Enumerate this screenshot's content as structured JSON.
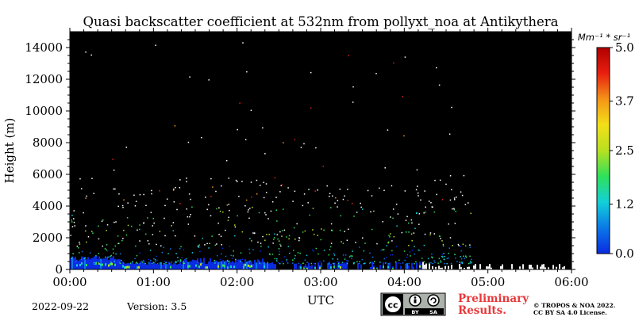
{
  "chart_data": {
    "type": "heatmap",
    "title": "Quasi backscatter coefficient at 532nm from pollyxt_noa at Antikythera",
    "xlabel": "UTC",
    "ylabel": "Height (m)",
    "x_ticks": [
      "00:00",
      "01:00",
      "02:00",
      "03:00",
      "04:00",
      "05:00",
      "06:00"
    ],
    "y_ticks": [
      "0",
      "2000",
      "4000",
      "6000",
      "8000",
      "10000",
      "12000",
      "14000"
    ],
    "xlim_hours": [
      0,
      6
    ],
    "ylim": [
      0,
      15000
    ],
    "colorbar": {
      "unit_label": "Mm⁻¹ * sr⁻¹",
      "range": [
        0,
        5
      ],
      "ticks": [
        "0.0",
        "1.2",
        "2.5",
        "3.7",
        "5.0"
      ],
      "colors": [
        "#0a2be0",
        "#0a78e8",
        "#12d0d8",
        "#2fe05a",
        "#b8e020",
        "#f3e018",
        "#f59418",
        "#e81f10",
        "#b00000"
      ]
    },
    "background_color": "#000000",
    "surface_layer_height_m": 500,
    "notes": {
      "date": "2022-09-22",
      "version": "Version: 3.5",
      "status_line1": "Preliminary",
      "status_line2": "Results.",
      "copyright_line1": "© TROPOS & NOA 2022.",
      "copyright_line2": "CC BY SA 4.0 License."
    },
    "license_badge": {
      "left": "cc",
      "by": "BY",
      "sa": "SA"
    }
  }
}
